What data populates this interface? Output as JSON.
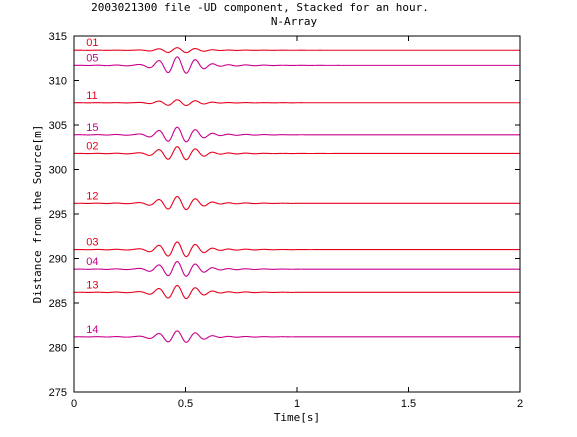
{
  "chart_data": {
    "type": "line",
    "title": "2003021300 file -UD component, Stacked for an hour.",
    "subtitle": "N-Array",
    "xlabel": "Time[s]",
    "ylabel": "Distance from the Source[m]",
    "xlim": [
      0,
      2
    ],
    "ylim": [
      275,
      315
    ],
    "x_ticks": [
      0,
      0.5,
      1,
      1.5,
      2
    ],
    "x_tick_labels": [
      "0",
      "0.5",
      "1",
      "1.5",
      "2"
    ],
    "y_ticks": [
      275,
      280,
      285,
      290,
      295,
      300,
      305,
      310,
      315
    ],
    "y_tick_labels": [
      "275",
      "280",
      "285",
      "290",
      "295",
      "300",
      "305",
      "310",
      "315"
    ],
    "grid": false,
    "series": [
      {
        "name": "01",
        "baseline": 313.4,
        "amplitude": 0.3,
        "color": "#e8001c"
      },
      {
        "name": "05",
        "baseline": 311.7,
        "amplitude": 1.0,
        "color": "#c8008c"
      },
      {
        "name": "11",
        "baseline": 307.5,
        "amplitude": 0.35,
        "color": "#e8001c"
      },
      {
        "name": "15",
        "baseline": 303.9,
        "amplitude": 0.9,
        "color": "#c8008c"
      },
      {
        "name": "02",
        "baseline": 301.8,
        "amplitude": 0.8,
        "color": "#e8001c"
      },
      {
        "name": "12",
        "baseline": 296.2,
        "amplitude": 0.8,
        "color": "#e8001c"
      },
      {
        "name": "03",
        "baseline": 291.0,
        "amplitude": 0.9,
        "color": "#e8001c"
      },
      {
        "name": "04",
        "baseline": 288.8,
        "amplitude": 0.9,
        "color": "#c8008c"
      },
      {
        "name": "13",
        "baseline": 286.2,
        "amplitude": 0.8,
        "color": "#e8001c"
      },
      {
        "name": "14",
        "baseline": 281.2,
        "amplitude": 0.7,
        "color": "#c8008c"
      }
    ]
  }
}
